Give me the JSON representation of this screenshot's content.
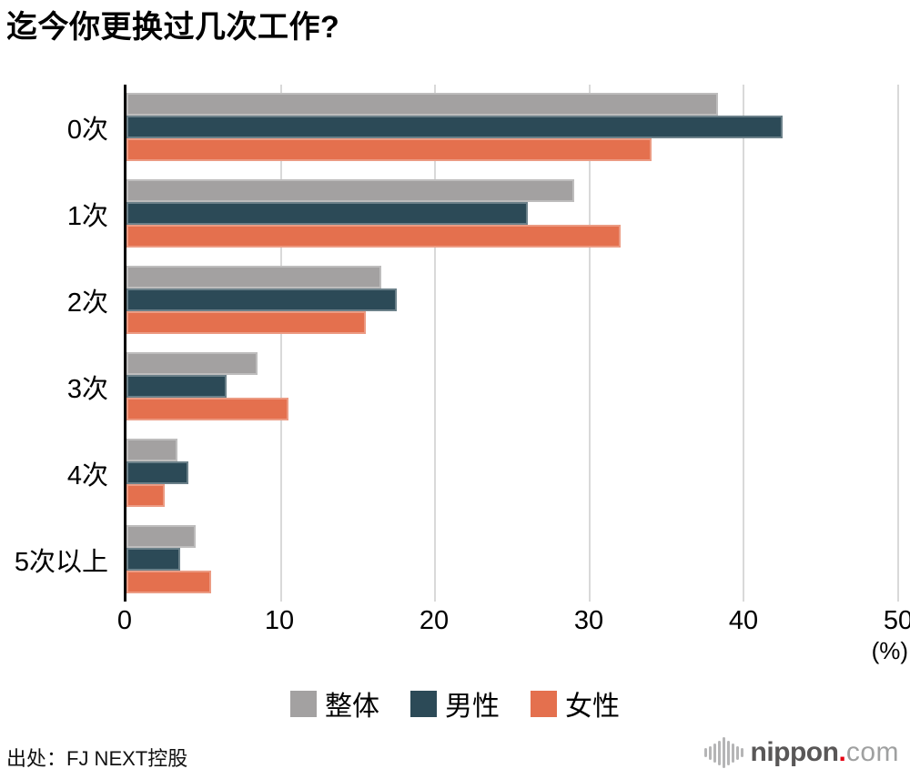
{
  "title": "迄今你更换过几次工作?",
  "source": "出处：FJ NEXT控股",
  "logo": {
    "name": "nippon",
    "dot": ".",
    "suffix": "com",
    "dot_color": "#e60012"
  },
  "axis": {
    "ticks": [
      "0",
      "10",
      "20",
      "30",
      "40",
      "50"
    ],
    "unit_label": "(%)"
  },
  "legend": [
    {
      "label": "整体",
      "color": "#a3a1a1"
    },
    {
      "label": "男性",
      "color": "#2c4a57"
    },
    {
      "label": "女性",
      "color": "#e4704e"
    }
  ],
  "chart_data": {
    "type": "bar",
    "orientation": "horizontal",
    "title": "迄今你更换过几次工作?",
    "categories": [
      "0次",
      "1次",
      "2次",
      "3次",
      "4次",
      "5次以上"
    ],
    "series": [
      {
        "name": "整体",
        "color": "#a3a1a1",
        "values": [
          38.3,
          29.0,
          16.5,
          8.5,
          3.3,
          4.5
        ]
      },
      {
        "name": "男性",
        "color": "#2c4a57",
        "values": [
          42.5,
          26.0,
          17.5,
          6.5,
          4.0,
          3.5
        ]
      },
      {
        "name": "女性",
        "color": "#e4704e",
        "values": [
          34.0,
          32.0,
          15.5,
          10.5,
          2.5,
          5.5
        ]
      }
    ],
    "xlim": [
      0,
      50
    ],
    "xlabel": "(%)",
    "grid": true,
    "gridline_color": "#d9d9d9",
    "legend_position": "bottom"
  }
}
